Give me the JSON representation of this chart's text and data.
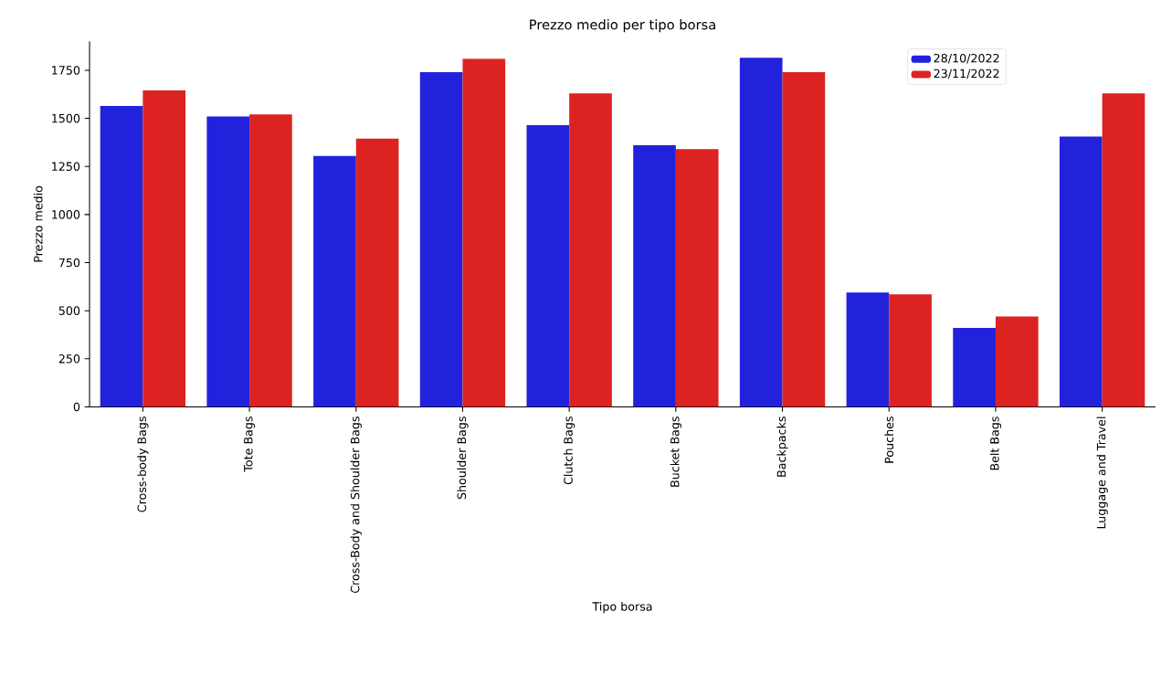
{
  "chart_data": {
    "type": "bar",
    "title": "Prezzo medio per tipo borsa",
    "xlabel": "Tipo borsa",
    "ylabel": "Prezzo medio",
    "categories": [
      "Cross-body Bags",
      "Tote Bags",
      "Cross-Body and Shoulder Bags",
      "Shoulder Bags",
      "Clutch Bags",
      "Bucket Bags",
      "Backpacks",
      "Pouches",
      "Belt Bags",
      "Luggage and Travel"
    ],
    "series": [
      {
        "name": "28/10/2022",
        "color": "#2222dd",
        "values": [
          1565,
          1510,
          1305,
          1740,
          1465,
          1360,
          1815,
          595,
          410,
          1405
        ]
      },
      {
        "name": "23/11/2022",
        "color": "#dd2222",
        "values": [
          1645,
          1520,
          1395,
          1810,
          1630,
          1340,
          1740,
          585,
          470,
          1630
        ]
      }
    ],
    "ylim": [
      0,
      1900
    ],
    "yticks": [
      0,
      250,
      500,
      750,
      1000,
      1250,
      1500,
      1750
    ],
    "grid": false,
    "legend": "top right"
  }
}
